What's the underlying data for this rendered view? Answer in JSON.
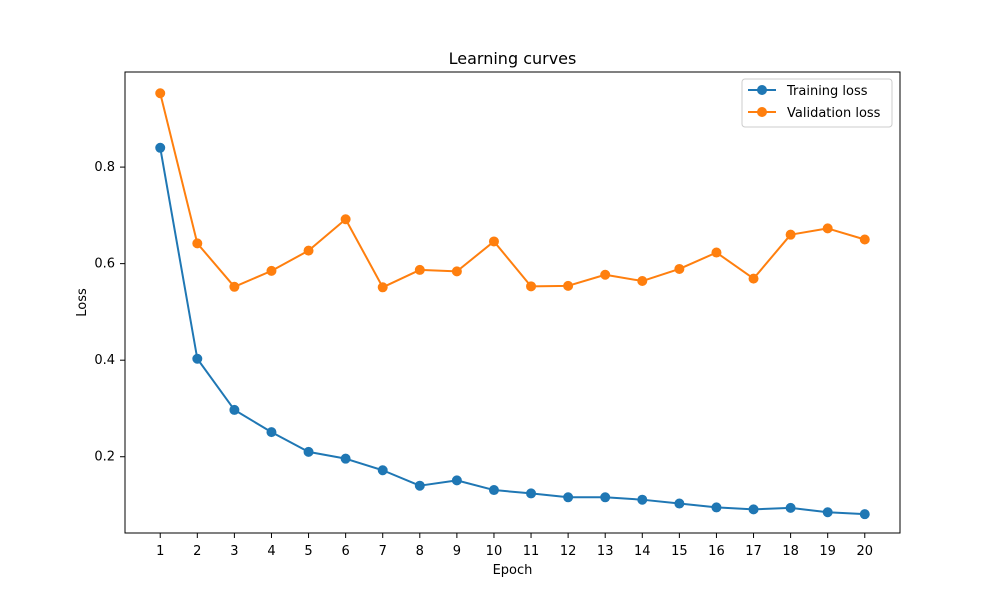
{
  "chart_data": {
    "type": "line",
    "title": "Learning curves",
    "xlabel": "Epoch",
    "ylabel": "Loss",
    "x": [
      1,
      2,
      3,
      4,
      5,
      6,
      7,
      8,
      9,
      10,
      11,
      12,
      13,
      14,
      15,
      16,
      17,
      18,
      19,
      20
    ],
    "xlim": [
      0.05,
      20.95
    ],
    "ylim": [
      0.042,
      0.997
    ],
    "xticks": [
      "1",
      "2",
      "3",
      "4",
      "5",
      "6",
      "7",
      "8",
      "9",
      "10",
      "11",
      "12",
      "13",
      "14",
      "15",
      "16",
      "17",
      "18",
      "19",
      "20"
    ],
    "yticks": [
      0.2,
      0.4,
      0.6,
      0.8
    ],
    "ytick_labels": [
      "0.2",
      "0.4",
      "0.6",
      "0.8"
    ],
    "grid": false,
    "legend_position": "upper right",
    "series": [
      {
        "name": "Training loss",
        "color": "#1f77b4",
        "marker": "circle",
        "values": [
          0.84,
          0.403,
          0.297,
          0.251,
          0.21,
          0.196,
          0.172,
          0.14,
          0.151,
          0.131,
          0.124,
          0.116,
          0.116,
          0.111,
          0.103,
          0.095,
          0.091,
          0.094,
          0.085,
          0.081
        ]
      },
      {
        "name": "Validation loss",
        "color": "#ff7f0e",
        "marker": "circle",
        "values": [
          0.953,
          0.642,
          0.552,
          0.585,
          0.627,
          0.692,
          0.551,
          0.587,
          0.584,
          0.646,
          0.553,
          0.554,
          0.577,
          0.564,
          0.589,
          0.623,
          0.569,
          0.66,
          0.673,
          0.65
        ]
      }
    ]
  }
}
